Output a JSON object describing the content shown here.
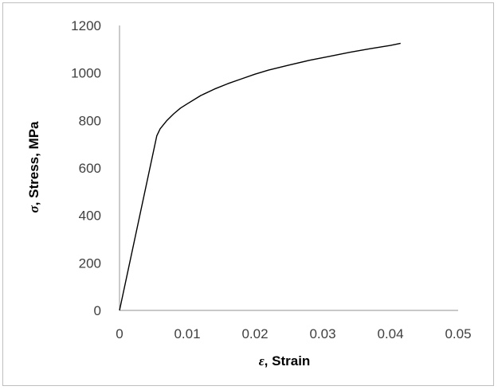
{
  "chart_data": {
    "type": "line",
    "title": "",
    "xlabel_symbol": "ε",
    "xlabel_text": ", Strain",
    "ylabel_symbol": "σ",
    "ylabel_text": ", Stress, MPa",
    "xlim": [
      0,
      0.05
    ],
    "ylim": [
      0,
      1200
    ],
    "x_ticks": [
      0,
      0.01,
      0.02,
      0.03,
      0.04,
      0.05
    ],
    "x_tick_labels": [
      "0",
      "0.01",
      "0.02",
      "0.03",
      "0.04",
      "0.05"
    ],
    "y_ticks": [
      0,
      200,
      400,
      600,
      800,
      1000,
      1200
    ],
    "y_tick_labels": [
      "0",
      "200",
      "400",
      "600",
      "800",
      "1000",
      "1200"
    ],
    "grid": false,
    "legend": "none",
    "series": [
      {
        "color": "#000000",
        "x": [
          0,
          0.0055,
          0.006,
          0.007,
          0.008,
          0.009,
          0.01,
          0.012,
          0.014,
          0.016,
          0.018,
          0.02,
          0.022,
          0.025,
          0.028,
          0.031,
          0.034,
          0.037,
          0.04,
          0.0415
        ],
        "y": [
          0,
          735,
          765,
          800,
          828,
          852,
          870,
          905,
          932,
          955,
          975,
          995,
          1012,
          1033,
          1053,
          1070,
          1087,
          1102,
          1116,
          1125
        ]
      }
    ]
  }
}
